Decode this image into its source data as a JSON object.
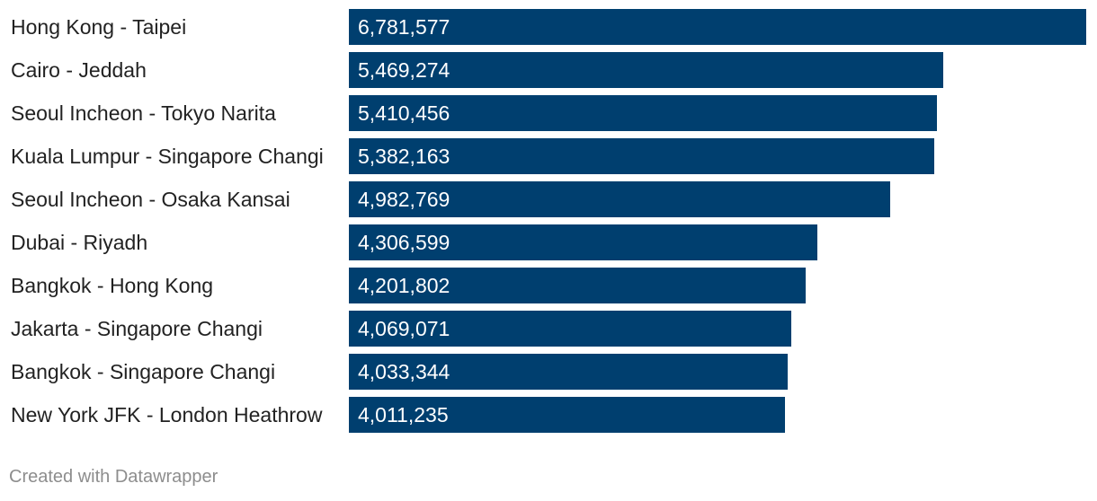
{
  "chart_data": {
    "type": "bar",
    "orientation": "horizontal",
    "categories": [
      "Hong Kong - Taipei",
      "Cairo - Jeddah",
      "Seoul Incheon - Tokyo Narita",
      "Kuala Lumpur - Singapore Changi",
      "Seoul Incheon - Osaka Kansai",
      "Dubai - Riyadh",
      "Bangkok - Hong Kong",
      "Jakarta - Singapore Changi",
      "Bangkok - Singapore Changi",
      "New York JFK - London Heathrow"
    ],
    "values": [
      6781577,
      5469274,
      5410456,
      5382163,
      4982769,
      4306599,
      4201802,
      4069071,
      4033344,
      4011235
    ],
    "value_labels": [
      "6,781,577",
      "5,469,274",
      "5,410,456",
      "5,382,163",
      "4,982,769",
      "4,306,599",
      "4,201,802",
      "4,069,071",
      "4,033,344",
      "4,011,235"
    ],
    "xlim": [
      0,
      6781577
    ],
    "grid": false,
    "bar_color": "#003f6f",
    "value_label_color": "#ffffff"
  },
  "footer": {
    "credit": "Created with Datawrapper"
  }
}
